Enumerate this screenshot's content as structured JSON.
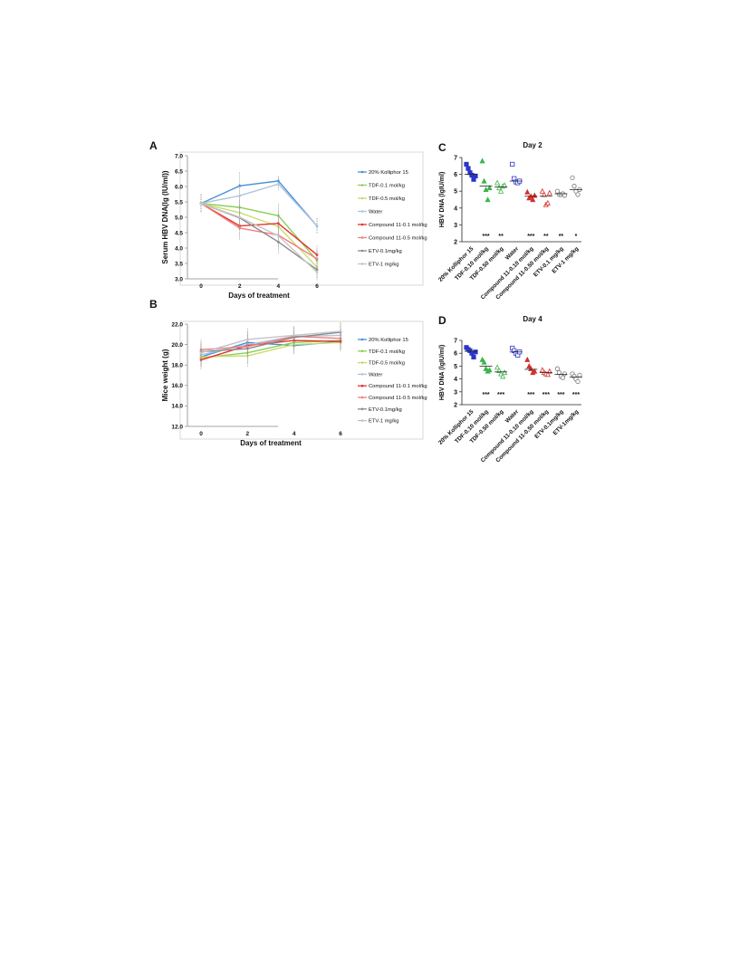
{
  "chart_data": [
    {
      "panel": "A",
      "type": "line",
      "title": "",
      "xlabel": "Days of treatment",
      "ylabel": "Serum HBV DNA(lg (IU/ml))",
      "x": [
        0,
        2,
        4,
        6
      ],
      "xticks": [
        "0",
        "2",
        "4",
        "6"
      ],
      "ylim": [
        3.0,
        7.0
      ],
      "yticks": [
        "3.0",
        "3.5",
        "4.0",
        "4.5",
        "5.0",
        "5.5",
        "6.0",
        "6.5",
        "7.0"
      ],
      "legend_position": "right",
      "series": [
        {
          "name": "20% Kolliphor 15",
          "color": "#4a90d9",
          "values": [
            5.45,
            6.02,
            6.18,
            4.72
          ],
          "err": [
            0.3,
            0.45,
            0.15,
            0.25
          ]
        },
        {
          "name": "TDF-0.1 mol/kg",
          "color": "#8ccf5a",
          "values": [
            5.45,
            5.32,
            5.05,
            3.6
          ],
          "err": [
            0.3,
            0.4,
            0.4,
            0.3
          ]
        },
        {
          "name": "TDF-0.5 mol/kg",
          "color": "#c9dc6a",
          "values": [
            5.45,
            5.15,
            4.7,
            3.38
          ],
          "err": [
            0.3,
            0.4,
            0.4,
            0.3
          ]
        },
        {
          "name": "Water",
          "color": "#b0c4de",
          "values": [
            5.45,
            5.7,
            6.08,
            4.72
          ],
          "err": [
            0.3,
            0.4,
            0.2,
            0.25
          ]
        },
        {
          "name": "Compound 11-0.1 mol/kg",
          "color": "#e8302c",
          "values": [
            5.45,
            4.72,
            4.8,
            3.78
          ],
          "err": [
            0.3,
            0.4,
            0.4,
            0.3
          ]
        },
        {
          "name": "Compound 11-0.5 mol/kg",
          "color": "#f07f7f",
          "values": [
            5.45,
            4.65,
            4.42,
            3.65
          ],
          "err": [
            0.3,
            0.4,
            0.4,
            0.3
          ]
        },
        {
          "name": "ETV-0.1mg/kg",
          "color": "#8a8a8a",
          "values": [
            5.45,
            4.98,
            4.2,
            3.3
          ],
          "err": [
            0.3,
            0.4,
            0.4,
            0.3
          ]
        },
        {
          "name": "ETV-1 mg/kg",
          "color": "#c4c4c4",
          "values": [
            5.45,
            5.0,
            4.4,
            3.22
          ],
          "err": [
            0.3,
            0.4,
            0.4,
            0.3
          ]
        }
      ]
    },
    {
      "panel": "B",
      "type": "line",
      "title": "",
      "xlabel": "Days of treatment",
      "ylabel": "Mice weight (g)",
      "x": [
        0,
        2,
        4,
        6
      ],
      "xticks": [
        "0",
        "2",
        "4",
        "6"
      ],
      "ylim": [
        12.0,
        22.0
      ],
      "yticks": [
        "12.0",
        "14.0",
        "16.0",
        "18.0",
        "20.0",
        "22.0"
      ],
      "legend_position": "right",
      "series": [
        {
          "name": "20% Kolliphor 15",
          "color": "#4a90d9",
          "values": [
            18.8,
            20.2,
            19.9,
            20.3
          ],
          "err": [
            1.0,
            1.1,
            0.9,
            0.9
          ]
        },
        {
          "name": "TDF-0.1 mol/kg",
          "color": "#8ccf5a",
          "values": [
            18.7,
            19.2,
            20.2,
            20.4
          ],
          "err": [
            1.0,
            1.1,
            0.9,
            0.9
          ]
        },
        {
          "name": "TDF-0.5 mol/kg",
          "color": "#c9dc6a",
          "values": [
            18.8,
            18.9,
            20.0,
            20.2
          ],
          "err": [
            1.0,
            1.1,
            0.9,
            0.9
          ]
        },
        {
          "name": "Water",
          "color": "#b0c4de",
          "values": [
            19.0,
            20.0,
            20.8,
            20.9
          ],
          "err": [
            1.0,
            1.1,
            0.9,
            0.9
          ]
        },
        {
          "name": "Compound 11-0.1 mol/kg",
          "color": "#e8302c",
          "values": [
            18.5,
            19.9,
            20.4,
            20.3
          ],
          "err": [
            1.0,
            1.1,
            0.9,
            0.9
          ]
        },
        {
          "name": "Compound 11-0.5 mol/kg",
          "color": "#f07f7f",
          "values": [
            19.5,
            19.8,
            20.8,
            20.6
          ],
          "err": [
            1.0,
            1.1,
            0.9,
            0.9
          ]
        },
        {
          "name": "ETV-0.1mg/kg",
          "color": "#8a8a8a",
          "values": [
            19.3,
            19.6,
            20.7,
            21.2
          ],
          "err": [
            1.0,
            1.1,
            0.9,
            0.9
          ]
        },
        {
          "name": "ETV-1 mg/kg",
          "color": "#c4c4c4",
          "values": [
            19.2,
            20.5,
            20.9,
            21.3
          ],
          "err": [
            1.0,
            1.1,
            0.9,
            0.9
          ]
        }
      ]
    },
    {
      "panel": "C",
      "type": "scatter",
      "title": "Day 2",
      "xlabel": "",
      "ylabel": "HBV DNA (lgIU/ml)",
      "ylim": [
        2,
        7
      ],
      "yticks": [
        "2",
        "3",
        "4",
        "5",
        "6",
        "7"
      ],
      "groups": [
        {
          "label": "20% Kolliphor 15",
          "color": "#2a35c9",
          "marker": "square-filled",
          "values": [
            6.6,
            6.35,
            6.1,
            5.95,
            5.7,
            5.9
          ],
          "mean": 6.0,
          "sig": ""
        },
        {
          "label": "TDF-0.10 mol/kg",
          "color": "#3bb54a",
          "marker": "triangle-filled",
          "values": [
            6.8,
            5.6,
            5.1,
            4.5,
            5.2
          ],
          "mean": 5.3,
          "sig": "***"
        },
        {
          "label": "TDF-0.50 mol/kg",
          "color": "#3bb54a",
          "marker": "triangle-open",
          "values": [
            5.5,
            5.2,
            5.0,
            5.3,
            5.35
          ],
          "mean": 5.25,
          "sig": "**"
        },
        {
          "label": "Water",
          "color": "#2a35c9",
          "marker": "square-open",
          "values": [
            6.6,
            5.75,
            5.55,
            5.5,
            5.6
          ],
          "mean": 5.6,
          "sig": ""
        },
        {
          "label": "Compound 11-0.10 mol/kg",
          "color": "#d3302c",
          "marker": "triangle-filled",
          "values": [
            4.95,
            4.6,
            4.7,
            4.5,
            4.75
          ],
          "mean": 4.7,
          "sig": "***"
        },
        {
          "label": "Compound 11-0.50 mol/kg",
          "color": "#d3302c",
          "marker": "triangle-open",
          "values": [
            5.0,
            4.8,
            4.2,
            4.3,
            4.9
          ],
          "mean": 4.7,
          "sig": "**"
        },
        {
          "label": "ETV-0.1 mg/kg",
          "color": "#777777",
          "marker": "circle-open",
          "values": [
            5.0,
            4.8,
            4.8,
            4.85,
            4.75
          ],
          "mean": 4.85,
          "sig": "**"
        },
        {
          "label": "ETV-1 mg/kg",
          "color": "#777777",
          "marker": "circle-open",
          "values": [
            5.8,
            5.3,
            5.0,
            4.8,
            5.1
          ],
          "mean": 5.1,
          "sig": "*"
        }
      ]
    },
    {
      "panel": "D",
      "type": "scatter",
      "title": "Day 4",
      "xlabel": "",
      "ylabel": "HBV DNA (lgIU/ml)",
      "ylim": [
        2,
        7
      ],
      "yticks": [
        "2",
        "3",
        "4",
        "5",
        "6",
        "7"
      ],
      "groups": [
        {
          "label": "20% Kolliphor 15",
          "color": "#2a35c9",
          "marker": "square-filled",
          "values": [
            6.45,
            6.3,
            6.2,
            6.0,
            5.7,
            6.1
          ],
          "mean": 6.15,
          "sig": ""
        },
        {
          "label": "TDF-0.10 mol/kg",
          "color": "#3bb54a",
          "marker": "triangle-filled",
          "values": [
            5.5,
            5.3,
            4.8,
            4.6,
            4.7
          ],
          "mean": 5.0,
          "sig": "***"
        },
        {
          "label": "TDF-0.50 mol/kg",
          "color": "#3bb54a",
          "marker": "triangle-open",
          "values": [
            4.9,
            4.65,
            4.4,
            4.2,
            4.5
          ],
          "mean": 4.55,
          "sig": "***"
        },
        {
          "label": "Water",
          "color": "#2a35c9",
          "marker": "square-open",
          "values": [
            6.4,
            6.2,
            6.0,
            5.85,
            6.1
          ],
          "mean": 6.1,
          "sig": ""
        },
        {
          "label": "Compound 11-0.10 mol/kg",
          "color": "#d3302c",
          "marker": "triangle-filled",
          "values": [
            5.5,
            5.0,
            4.8,
            4.5,
            4.6
          ],
          "mean": 4.75,
          "sig": "***"
        },
        {
          "label": "Compound 11-0.50 mol/kg",
          "color": "#d3302c",
          "marker": "triangle-open",
          "values": [
            4.7,
            4.5,
            4.4,
            4.35,
            4.6
          ],
          "mean": 4.5,
          "sig": "***"
        },
        {
          "label": "ETV-0.1mg/kg",
          "color": "#777777",
          "marker": "circle-open",
          "values": [
            4.8,
            4.5,
            4.2,
            4.1,
            4.4
          ],
          "mean": 4.35,
          "sig": "***"
        },
        {
          "label": "ETV-1mg/kg",
          "color": "#777777",
          "marker": "circle-open",
          "values": [
            4.4,
            4.2,
            4.0,
            3.8,
            4.3
          ],
          "mean": 4.15,
          "sig": "***"
        }
      ]
    }
  ]
}
